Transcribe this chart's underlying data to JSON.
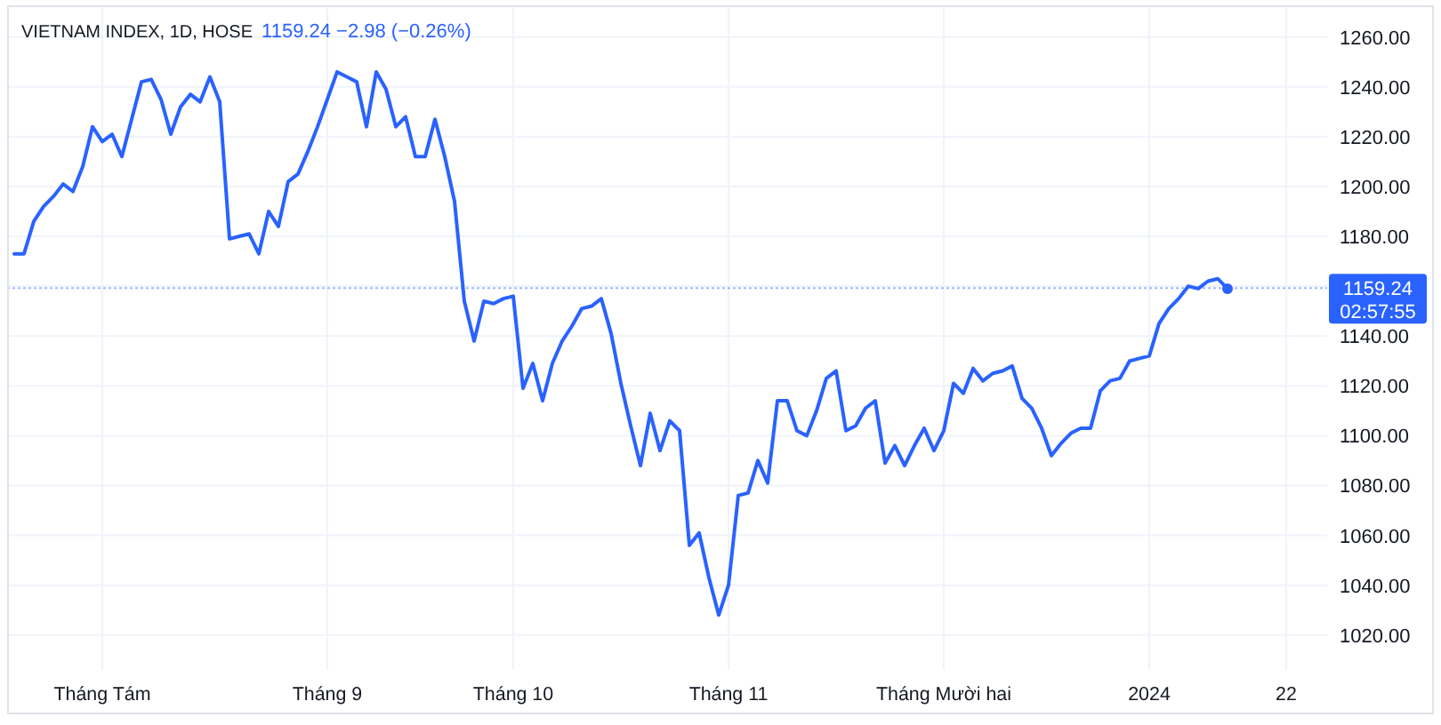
{
  "chart_data": {
    "type": "line",
    "title": "VIETNAM INDEX, 1D, HOSE",
    "subtitle": "1159.24 −2.98 (−0.26%)",
    "categories": [
      null,
      null,
      null,
      null,
      null,
      null,
      null,
      null,
      null,
      "Tháng Tám",
      null,
      null,
      null,
      null,
      null,
      null,
      null,
      null,
      null,
      null,
      null,
      null,
      null,
      null,
      null,
      null,
      null,
      null,
      null,
      null,
      null,
      null,
      "Tháng 9",
      null,
      null,
      null,
      null,
      null,
      null,
      null,
      null,
      null,
      null,
      null,
      null,
      null,
      null,
      null,
      null,
      null,
      null,
      "Tháng 10",
      null,
      null,
      null,
      null,
      null,
      null,
      null,
      null,
      null,
      null,
      null,
      null,
      null,
      null,
      null,
      null,
      null,
      null,
      null,
      null,
      null,
      "Tháng 11",
      null,
      null,
      null,
      null,
      null,
      null,
      null,
      null,
      null,
      null,
      null,
      null,
      null,
      null,
      null,
      null,
      null,
      null,
      null,
      null,
      null,
      "Tháng Mười hai",
      null,
      null,
      null,
      null,
      null,
      null,
      null,
      null,
      null,
      null,
      null,
      null,
      null,
      null,
      null,
      null,
      null,
      null,
      null,
      null,
      "2024",
      null,
      null,
      null,
      null,
      null,
      null,
      null,
      null,
      null,
      null,
      null,
      null,
      null,
      "22",
      null,
      null,
      null,
      null
    ],
    "series": [
      {
        "color": "#2962ff",
        "values": [
          1173,
          1173,
          1186,
          1192,
          1196,
          1201,
          1198,
          1208,
          1224,
          1218,
          1221,
          1212,
          1227,
          1242,
          1243,
          1235,
          1221,
          1232,
          1237,
          1234,
          1244,
          1234,
          1179,
          1180,
          1181,
          1173,
          1190,
          1184,
          1202,
          1205,
          1214,
          1224,
          1235,
          1246,
          1244,
          1242,
          1224,
          1246,
          1239,
          1224,
          1228,
          1212,
          1212,
          1227,
          1212,
          1194,
          1154,
          1138,
          1154,
          1153,
          1155,
          1156,
          1119,
          1129,
          1114,
          1129,
          1138,
          1144,
          1151,
          1152,
          1155,
          1141,
          1121,
          1104,
          1088,
          1109,
          1094,
          1106,
          1102,
          1056,
          1061,
          1043,
          1028,
          1040,
          1076,
          1077,
          1090,
          1081,
          1114,
          1114,
          1102,
          1100,
          1110,
          1123,
          1126,
          1102,
          1104,
          1111,
          1114,
          1089,
          1096,
          1088,
          1096,
          1103,
          1094,
          1102,
          1121,
          1117,
          1127,
          1122,
          1125,
          1126,
          1128,
          1115,
          1111,
          1103,
          1092,
          1097,
          1101,
          1103,
          1103,
          1118,
          1122,
          1123,
          1130,
          1131,
          1132,
          1145,
          1151,
          1155,
          1160,
          1159,
          1162,
          1163,
          1159,
          null,
          null,
          null,
          null,
          null,
          null,
          null,
          null,
          null,
          null
        ]
      },
      {
        "type": "scatter",
        "color": "#2962ff",
        "values": [
          null,
          null,
          null,
          null,
          null,
          null,
          null,
          null,
          null,
          null,
          null,
          null,
          null,
          null,
          null,
          null,
          null,
          null,
          null,
          null,
          null,
          null,
          null,
          null,
          null,
          null,
          null,
          null,
          null,
          null,
          null,
          null,
          null,
          null,
          null,
          null,
          null,
          null,
          null,
          null,
          null,
          null,
          null,
          null,
          null,
          null,
          null,
          null,
          null,
          null,
          null,
          null,
          null,
          null,
          null,
          null,
          null,
          null,
          null,
          null,
          null,
          null,
          null,
          null,
          null,
          null,
          null,
          null,
          null,
          null,
          null,
          null,
          null,
          null,
          null,
          null,
          null,
          null,
          null,
          null,
          null,
          null,
          null,
          null,
          null,
          null,
          null,
          null,
          null,
          null,
          null,
          null,
          null,
          null,
          null,
          null,
          null,
          null,
          null,
          null,
          null,
          null,
          null,
          null,
          null,
          null,
          null,
          null,
          null,
          null,
          null,
          null,
          null,
          null,
          null,
          null,
          null,
          null,
          null,
          null,
          null,
          null,
          null,
          null,
          1159,
          null,
          null,
          null,
          null,
          null,
          null,
          null,
          null,
          null,
          null
        ]
      }
    ],
    "ylim": [
      1006,
      1272
    ],
    "yticks": [
      {
        "value": 1020,
        "label": "1020.00"
      },
      {
        "value": 1040,
        "label": "1040.00"
      },
      {
        "value": 1060,
        "label": "1060.00"
      },
      {
        "value": 1080,
        "label": "1080.00"
      },
      {
        "value": 1100,
        "label": "1100.00"
      },
      {
        "value": 1120,
        "label": "1120.00"
      },
      {
        "value": 1140,
        "label": "1140.00"
      },
      {
        "value": 1160,
        "label": null
      },
      {
        "value": 1180,
        "label": "1180.00"
      },
      {
        "value": 1200,
        "label": "1200.00"
      },
      {
        "value": 1220,
        "label": "1220.00"
      },
      {
        "value": 1240,
        "label": "1240.00"
      },
      {
        "value": 1260,
        "label": "1260.00"
      }
    ],
    "grid": true,
    "ref_lines": [
      {
        "axis": "y",
        "value": 1159.24,
        "label": "1159.24",
        "color": "#2962ff",
        "line_style": "dotted"
      }
    ],
    "annotations": [
      "02:57:55"
    ]
  }
}
